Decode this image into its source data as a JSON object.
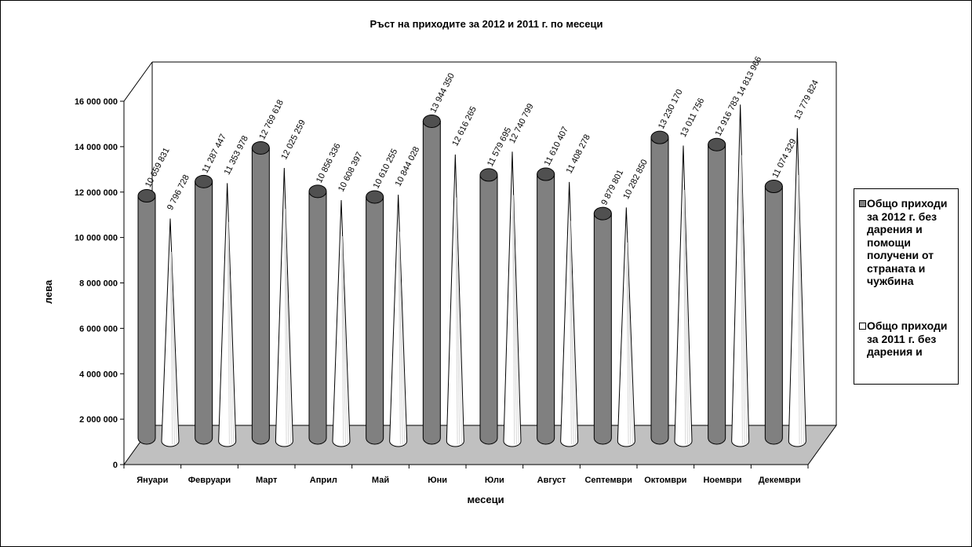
{
  "chart_data": {
    "type": "bar",
    "title": "Ръст на приходите за 2012 и 2011 г. по месеци",
    "xlabel": "месеци",
    "ylabel": "лева",
    "categories": [
      "Януари",
      "Февруари",
      "Март",
      "Април",
      "Май",
      "Юни",
      "Юли",
      "Август",
      "Септември",
      "Октомври",
      "Ноември",
      "Декември"
    ],
    "ylim": [
      0,
      16000000
    ],
    "yticks": [
      "0",
      "2 000 000",
      "4 000 000",
      "6 000 000",
      "8 000 000",
      "10 000 000",
      "12 000 000",
      "14 000 000",
      "16 000 000"
    ],
    "series": [
      {
        "name": "Общо приходи за 2012 г. без дарения и помощи получени от страната и чужбина",
        "color": "#808080",
        "shape": "cylinder",
        "values": [
          10659831,
          11287447,
          12769618,
          10856336,
          10610255,
          13944350,
          11579695,
          11610407,
          9879801,
          13230170,
          12916783,
          11074329
        ],
        "labels": [
          "10 659 831",
          "11 287 447",
          "12 769 618",
          "10 856 336",
          "10 610 255",
          "13 944 350",
          "11 579 695",
          "11 610 407",
          "9 879 801",
          "13 230 170",
          "12 916 783",
          "11 074 329"
        ]
      },
      {
        "name": "Общо приходи за 2011 г. без дарения и",
        "color": "#ffffff",
        "shape": "cone",
        "values": [
          9796728,
          11353978,
          12025259,
          10608397,
          10844028,
          12616265,
          12740799,
          11408278,
          10282850,
          13011756,
          14813966,
          13779824
        ],
        "labels": [
          "9 796 728",
          "11 353 978",
          "12 025 259",
          "10 608 397",
          "10 844 028",
          "12 616 265",
          "12 740 799",
          "11 408 278",
          "10 282 850",
          "13 011 756",
          "14 813 966",
          "13 779 824"
        ]
      }
    ],
    "legend_position": "right",
    "grid": false,
    "three_d": true
  }
}
